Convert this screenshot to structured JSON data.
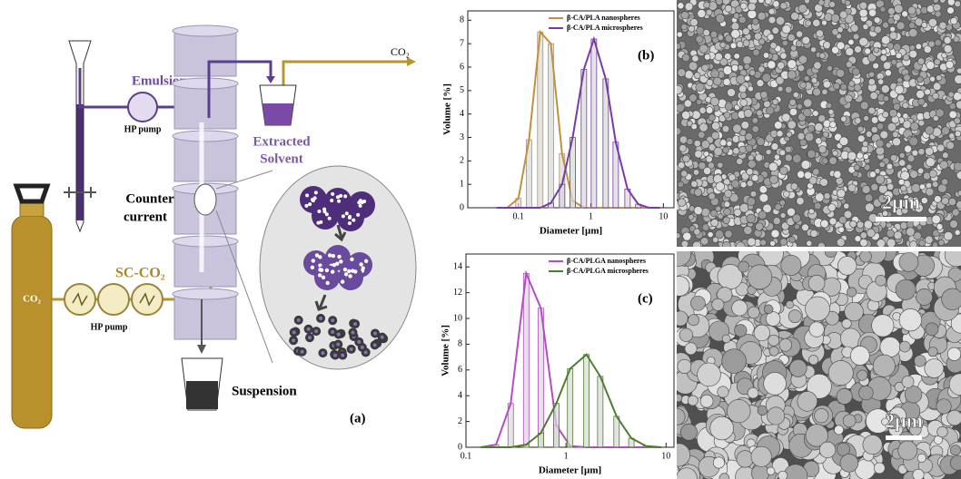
{
  "diagram": {
    "outlet_label": "CO₂",
    "emulsion_label": "Emulsion",
    "emulsion_pump_label": "HP pump",
    "solvent_label": [
      "Extracted",
      "Solvent"
    ],
    "column_label": [
      "Counter",
      "current"
    ],
    "sc_co2_label": "SC-CO₂",
    "cylinder_label": "CO₂",
    "co2_pump_label": "HP pump",
    "suspension_label": "Suspension",
    "panel_label": "(a)"
  },
  "chart_data": [
    {
      "type": "histogram-fit",
      "panel_label": "(b)",
      "xlabel": "Diameter [µm]",
      "ylabel": "Volume [%]",
      "xscale": "log",
      "xlim": [
        0.02,
        14
      ],
      "xticks": [
        0.1,
        1,
        10
      ],
      "ylim": [
        0,
        8.4
      ],
      "yticks": [
        0,
        1,
        2,
        3,
        4,
        5,
        6,
        7,
        8
      ],
      "legend": "top-right",
      "x": [
        0.05,
        0.07,
        0.1,
        0.14,
        0.2,
        0.28,
        0.4,
        0.56,
        0.8,
        1.1,
        1.6,
        2.2,
        3.2,
        4.5,
        6.3,
        9
      ],
      "series": [
        {
          "name": "β-CA/PLA nanospheres",
          "color": "#c39040",
          "values": [
            0,
            0,
            0.4,
            2.9,
            7.5,
            7.0,
            2.3,
            0.3,
            0,
            0,
            0,
            0,
            0,
            0,
            0,
            0
          ]
        },
        {
          "name": "β-CA/PLA microspheres",
          "color": "#7a3aa6",
          "values": [
            0,
            0,
            0,
            0,
            0,
            0.2,
            1.0,
            3.0,
            5.9,
            7.2,
            5.5,
            2.8,
            0.8,
            0.15,
            0,
            0
          ]
        }
      ]
    },
    {
      "type": "histogram-fit",
      "panel_label": "(c)",
      "xlabel": "Diameter [µm]",
      "ylabel": "Volume [%]",
      "xscale": "log",
      "xlim": [
        0.1,
        12
      ],
      "xticks": [
        0.1,
        1,
        10
      ],
      "ylim": [
        0,
        15
      ],
      "yticks": [
        0,
        2,
        4,
        6,
        8,
        10,
        12,
        14
      ],
      "legend": "top-right",
      "x": [
        0.14,
        0.2,
        0.28,
        0.4,
        0.56,
        0.8,
        1.1,
        1.6,
        2.2,
        3.2,
        4.5,
        6.3,
        9
      ],
      "series": [
        {
          "name": "β-CA/PLGA nanospheres",
          "color": "#b44cc4",
          "values": [
            0,
            0.2,
            3.4,
            13.5,
            10.8,
            1.7,
            0.1,
            0,
            0,
            0,
            0,
            0,
            0
          ]
        },
        {
          "name": "β-CA/PLGA microspheres",
          "color": "#4f7d2f",
          "values": [
            0,
            0,
            0,
            0.2,
            1.1,
            3.4,
            6.1,
            7.2,
            5.5,
            2.4,
            0.7,
            0.1,
            0
          ]
        }
      ]
    }
  ],
  "images": [
    {
      "scale_label": "2µm"
    },
    {
      "scale_label": "2µm"
    }
  ]
}
